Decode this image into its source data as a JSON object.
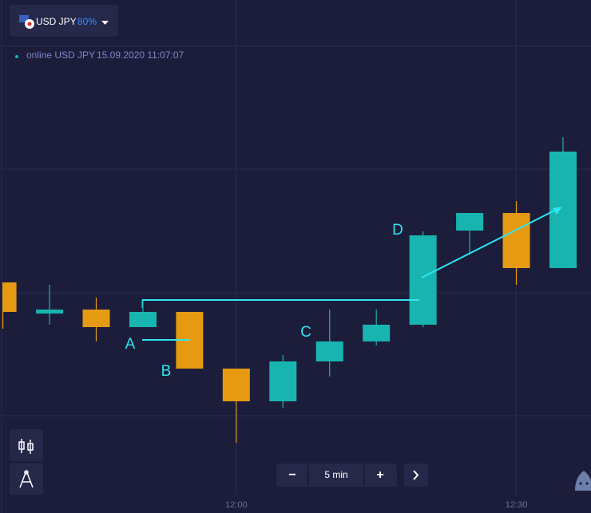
{
  "header": {
    "pair": "USD JPY",
    "payout": "80%"
  },
  "status": {
    "label": "online USD JPY",
    "timestamp": "15.09.2020 11:07:07"
  },
  "chart_data": {
    "type": "candlestick",
    "categories": [
      null,
      null,
      null,
      null,
      null,
      "12:00",
      null,
      null,
      null,
      null,
      null,
      "12:30",
      null
    ],
    "series": [
      {
        "name": "open",
        "values": [
          246,
          207,
          212,
          190,
          209,
          138,
          97,
          147,
          172,
          193,
          311,
          333,
          264
        ]
      },
      {
        "name": "high",
        "values": [
          246,
          243,
          227,
          224,
          209,
          138,
          155,
          212,
          212,
          310,
          333,
          348,
          428
        ]
      },
      {
        "name": "low",
        "values": [
          188,
          193,
          172,
          190,
          138,
          45,
          89,
          128,
          167,
          190,
          283,
          243,
          264
        ]
      },
      {
        "name": "close",
        "values": [
          209,
          212,
          190,
          209,
          138,
          97,
          147,
          172,
          193,
          305,
          333,
          264,
          410
        ]
      }
    ],
    "up_color": "#18b5b0",
    "down_color": "#e59a12",
    "ylim": [
      0,
      600
    ],
    "annotations": [
      "A",
      "B",
      "C",
      "D"
    ]
  },
  "zoom": {
    "minus": "−",
    "interval": "5 min",
    "plus": "+"
  }
}
